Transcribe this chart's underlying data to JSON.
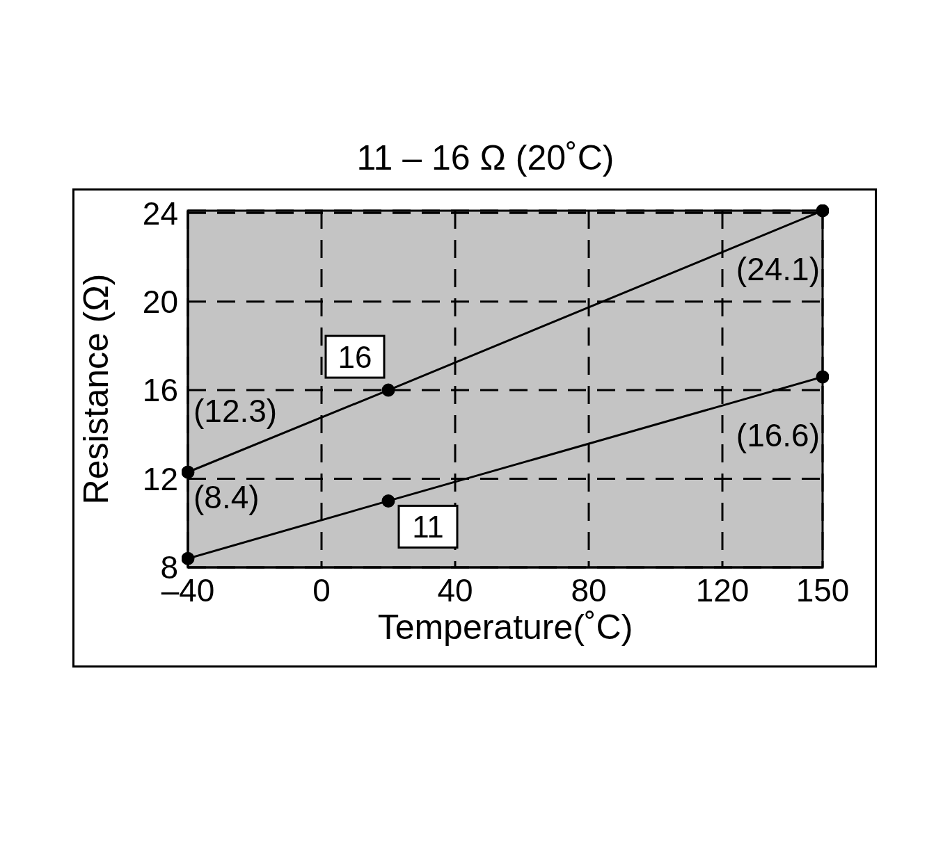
{
  "chart_data": {
    "type": "line",
    "title": "11 – 16 Ω (20˚C)",
    "xlabel": "Temperature(˚C)",
    "ylabel": "Resistance (Ω)",
    "x": [
      -40,
      20,
      150
    ],
    "series": [
      {
        "name": "16",
        "color": "#000000",
        "values": [
          12.3,
          16,
          24.1
        ],
        "value_labels": [
          "(12.3)",
          null,
          "(24.1)"
        ]
      },
      {
        "name": "11",
        "color": "#000000",
        "values": [
          8.4,
          11,
          16.6
        ],
        "value_labels": [
          "(8.4)",
          null,
          "(16.6)"
        ]
      }
    ],
    "xlim": [
      -40,
      150
    ],
    "xticks": [
      {
        "value": -40,
        "label": "–40"
      },
      0,
      40,
      80,
      120,
      150
    ],
    "ylim": [
      8,
      24.1
    ],
    "yticks": [
      8,
      12,
      16,
      20,
      24
    ],
    "grid": true,
    "marker": "circle",
    "line_style": "solid",
    "legend": false
  }
}
